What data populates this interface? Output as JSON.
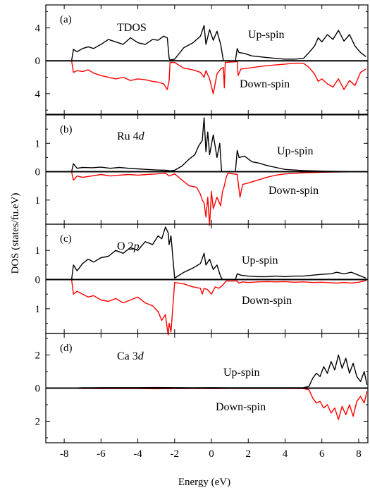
{
  "chart_data": {
    "type": "line",
    "ylabel": "DOS (states/fu.eV)",
    "xlabel": "Energy (eV)",
    "xlim": [
      -9,
      8.5
    ],
    "x_ticks": [
      -8,
      -6,
      -4,
      -2,
      0,
      2,
      4,
      6,
      8
    ],
    "x_tick_labels": [
      "-8",
      "-6",
      "-4",
      "-2",
      "0",
      "2",
      "4",
      "6",
      "8"
    ],
    "colors": {
      "up": "#000000",
      "down": "#ff0000"
    },
    "panels": [
      {
        "letter": "(a)",
        "title_main": "TDOS",
        "title_italic": "",
        "ylim": [
          -6.5,
          6.8
        ],
        "y_ticks": [
          4,
          0,
          -4
        ],
        "y_tick_labels": [
          "4",
          "0",
          "4"
        ],
        "up_label": "Up-spin",
        "down_label": "Down-spin",
        "series": [
          {
            "name": "Up-spin",
            "x": [
              -7.6,
              -7.5,
              -7.3,
              -7.0,
              -6.7,
              -6.4,
              -6.0,
              -5.6,
              -5.2,
              -4.8,
              -4.4,
              -4.0,
              -3.6,
              -3.2,
              -2.9,
              -2.6,
              -2.4,
              -2.3,
              -2.25,
              -2.0,
              -1.5,
              -1.0,
              -0.6,
              -0.4,
              -0.3,
              -0.1,
              0.1,
              0.3,
              0.5,
              0.65,
              1.3,
              1.4,
              1.5,
              1.8,
              2.2,
              2.6,
              3.0,
              3.5,
              4.0,
              4.5,
              5.0,
              5.3,
              5.6,
              5.8,
              6.0,
              6.3,
              6.6,
              6.9,
              7.2,
              7.5,
              7.8,
              8.1,
              8.4
            ],
            "values": [
              0.0,
              1.4,
              1.1,
              1.5,
              1.7,
              1.5,
              2.0,
              2.6,
              2.3,
              2.0,
              2.8,
              2.2,
              2.0,
              2.6,
              2.5,
              3.0,
              2.8,
              0.3,
              0.1,
              0.2,
              1.6,
              2.2,
              3.0,
              4.3,
              2.0,
              3.8,
              2.5,
              3.6,
              2.0,
              0.0,
              0.0,
              1.5,
              1.0,
              0.9,
              0.6,
              0.5,
              0.4,
              0.3,
              0.2,
              0.2,
              0.3,
              1.0,
              1.8,
              2.8,
              2.3,
              3.2,
              2.6,
              3.7,
              2.4,
              3.2,
              1.8,
              1.0,
              0.5
            ]
          },
          {
            "name": "Down-spin",
            "x": [
              -7.6,
              -7.5,
              -7.3,
              -7.0,
              -6.7,
              -6.4,
              -6.0,
              -5.6,
              -5.2,
              -4.8,
              -4.4,
              -4.0,
              -3.6,
              -3.2,
              -2.9,
              -2.6,
              -2.4,
              -2.3,
              -2.25,
              -2.0,
              -1.5,
              -1.0,
              -0.6,
              -0.4,
              -0.3,
              -0.1,
              0.1,
              0.3,
              0.5,
              0.65,
              0.7,
              0.75,
              1.4,
              1.45,
              1.6,
              2.0,
              2.6,
              3.0,
              3.5,
              4.0,
              4.5,
              5.0,
              5.3,
              5.6,
              5.8,
              6.0,
              6.3,
              6.6,
              6.9,
              7.2,
              7.5,
              7.8,
              8.1,
              8.4
            ],
            "values": [
              0.0,
              -1.4,
              -1.2,
              -1.3,
              -1.1,
              -1.5,
              -1.8,
              -2.0,
              -2.2,
              -2.0,
              -2.4,
              -2.2,
              -2.3,
              -2.5,
              -2.6,
              -2.8,
              -3.5,
              -2.4,
              -0.2,
              -0.2,
              -0.9,
              -1.1,
              -1.4,
              -2.0,
              -1.2,
              -2.2,
              -4.0,
              -1.6,
              -1.0,
              -0.8,
              -3.3,
              -0.2,
              -0.1,
              -1.8,
              -1.0,
              -0.9,
              -0.7,
              -0.6,
              -0.5,
              -0.4,
              -0.3,
              -0.3,
              -0.8,
              -1.6,
              -2.5,
              -2.2,
              -2.8,
              -3.2,
              -2.2,
              -3.5,
              -2.4,
              -3.0,
              -1.4,
              -1.0
            ]
          }
        ]
      },
      {
        "letter": "(b)",
        "title_main": "Ru 4",
        "title_italic": "d",
        "ylim": [
          -1.85,
          2.0
        ],
        "y_ticks": [
          1,
          0,
          -1
        ],
        "y_tick_labels": [
          "1",
          "0",
          "1"
        ],
        "up_label": "Up-spin",
        "down_label": "Down-spin",
        "series": [
          {
            "name": "Up-spin",
            "x": [
              -7.6,
              -7.5,
              -7.3,
              -7.0,
              -6.5,
              -6.0,
              -5.5,
              -5.0,
              -4.5,
              -4.0,
              -3.5,
              -3.0,
              -2.5,
              -2.2,
              -2.0,
              -1.6,
              -1.2,
              -0.9,
              -0.7,
              -0.5,
              -0.4,
              -0.3,
              -0.2,
              -0.1,
              0.1,
              0.3,
              0.45,
              0.55,
              1.3,
              1.4,
              1.5,
              1.8,
              2.2,
              2.6,
              3.0,
              3.5,
              4.0,
              5.0,
              6.0,
              7.0,
              8.4
            ],
            "values": [
              0.0,
              0.28,
              0.12,
              0.15,
              0.14,
              0.16,
              0.12,
              0.15,
              0.12,
              0.1,
              0.08,
              0.06,
              0.05,
              0.03,
              0.05,
              0.2,
              0.45,
              0.6,
              0.9,
              1.1,
              1.9,
              0.7,
              1.4,
              0.6,
              1.3,
              0.5,
              1.0,
              0.0,
              0.0,
              0.75,
              0.5,
              0.55,
              0.35,
              0.3,
              0.22,
              0.15,
              0.08,
              0.04,
              0.02,
              0.01,
              0.0
            ]
          },
          {
            "name": "Down-spin",
            "x": [
              -7.6,
              -7.5,
              -7.3,
              -7.0,
              -6.5,
              -6.0,
              -5.5,
              -5.0,
              -4.5,
              -4.0,
              -3.5,
              -3.0,
              -2.5,
              -2.3,
              -2.0,
              -1.5,
              -1.2,
              -0.8,
              -0.6,
              -0.5,
              -0.4,
              -0.3,
              -0.2,
              -0.1,
              0.0,
              0.1,
              0.3,
              0.5,
              0.6,
              0.7,
              0.8,
              0.9,
              1.4,
              1.55,
              1.7,
              2.0,
              2.5,
              3.0,
              3.5,
              4.0,
              5.0,
              6.0,
              7.0,
              8.4
            ],
            "values": [
              0.0,
              -0.3,
              -0.15,
              -0.2,
              -0.15,
              -0.1,
              -0.15,
              -0.12,
              -0.1,
              -0.12,
              -0.1,
              -0.08,
              -0.05,
              -0.15,
              -0.08,
              -0.35,
              -0.5,
              -0.55,
              -0.8,
              -1.0,
              -1.1,
              -1.6,
              -0.9,
              -1.9,
              -0.7,
              -1.3,
              -0.9,
              -1.2,
              -0.7,
              -0.5,
              -0.2,
              -0.05,
              -0.1,
              -0.9,
              -0.45,
              -0.4,
              -0.3,
              -0.2,
              -0.12,
              -0.08,
              -0.04,
              -0.02,
              -0.01,
              0.0
            ]
          }
        ]
      },
      {
        "letter": "(c)",
        "title_main": "O 2",
        "title_italic": "p",
        "ylim": [
          -1.85,
          1.9
        ],
        "y_ticks": [
          1,
          0,
          -1
        ],
        "y_tick_labels": [
          "1",
          "0",
          "1"
        ],
        "up_label": "Up-spin",
        "down_label": "Down-spin",
        "series": [
          {
            "name": "Up-spin",
            "x": [
              -7.6,
              -7.5,
              -7.3,
              -7.0,
              -6.7,
              -6.4,
              -6.0,
              -5.6,
              -5.2,
              -4.8,
              -4.4,
              -4.0,
              -3.6,
              -3.2,
              -2.9,
              -2.7,
              -2.5,
              -2.35,
              -2.3,
              -2.2,
              -2.0,
              -1.5,
              -1.0,
              -0.6,
              -0.4,
              -0.3,
              -0.1,
              0.1,
              0.3,
              0.5,
              0.6,
              1.3,
              1.4,
              1.6,
              2.0,
              2.5,
              3.0,
              3.5,
              4.0,
              4.5,
              5.0,
              5.5,
              6.0,
              6.5,
              6.8,
              7.2,
              7.6,
              8.0,
              8.4
            ],
            "values": [
              0.0,
              0.5,
              0.3,
              0.55,
              0.7,
              0.6,
              0.75,
              0.8,
              1.0,
              0.9,
              1.1,
              1.0,
              1.3,
              1.2,
              1.5,
              1.4,
              1.8,
              1.6,
              1.2,
              1.5,
              0.05,
              0.25,
              0.4,
              0.55,
              0.9,
              0.5,
              0.7,
              0.35,
              0.5,
              0.1,
              0.0,
              0.0,
              0.2,
              0.15,
              0.12,
              0.1,
              0.1,
              0.12,
              0.1,
              0.12,
              0.12,
              0.15,
              0.18,
              0.2,
              0.25,
              0.2,
              0.25,
              0.15,
              0.05
            ]
          },
          {
            "name": "Down-spin",
            "x": [
              -7.6,
              -7.5,
              -7.3,
              -7.0,
              -6.7,
              -6.4,
              -6.0,
              -5.6,
              -5.2,
              -4.8,
              -4.4,
              -4.0,
              -3.6,
              -3.2,
              -2.9,
              -2.7,
              -2.5,
              -2.4,
              -2.35,
              -2.3,
              -2.2,
              -2.0,
              -1.5,
              -1.0,
              -0.6,
              -0.5,
              -0.4,
              -0.2,
              0.0,
              0.2,
              0.4,
              0.6,
              0.8,
              1.4,
              1.5,
              1.7,
              2.0,
              2.5,
              3.0,
              3.5,
              4.0,
              4.5,
              5.0,
              5.5,
              6.0,
              6.5,
              6.8,
              7.2,
              7.6,
              8.0,
              8.4
            ],
            "values": [
              0.0,
              -0.5,
              -0.4,
              -0.5,
              -0.6,
              -0.55,
              -0.7,
              -0.75,
              -0.65,
              -0.8,
              -0.7,
              -0.6,
              -0.8,
              -0.9,
              -1.1,
              -1.4,
              -1.2,
              -1.7,
              -1.9,
              -1.5,
              -1.8,
              -0.1,
              -0.15,
              -0.25,
              -0.3,
              -0.5,
              -0.3,
              -0.35,
              -0.5,
              -0.25,
              -0.3,
              -0.2,
              -0.05,
              -0.05,
              -0.12,
              -0.08,
              -0.1,
              -0.08,
              -0.07,
              -0.08,
              -0.07,
              -0.09,
              -0.08,
              -0.1,
              -0.09,
              -0.11,
              -0.12,
              -0.1,
              -0.12,
              -0.09,
              -0.03
            ]
          }
        ]
      },
      {
        "letter": "(d)",
        "title_main": "Ca 3",
        "title_italic": "d",
        "ylim": [
          -3.3,
          3.3
        ],
        "y_ticks": [
          2,
          0,
          -2
        ],
        "y_tick_labels": [
          "2",
          "0",
          "2"
        ],
        "up_label": "Up-spin",
        "down_label": "Down-spin",
        "series": [
          {
            "name": "Up-spin",
            "x": [
              -7.6,
              -7.0,
              -6.0,
              -5.0,
              -4.0,
              -3.0,
              -2.0,
              -1.0,
              0.0,
              1.0,
              2.0,
              3.0,
              4.0,
              5.0,
              5.3,
              5.5,
              5.7,
              5.9,
              6.1,
              6.3,
              6.5,
              6.7,
              6.9,
              7.1,
              7.3,
              7.5,
              7.7,
              7.9,
              8.1,
              8.3,
              8.45
            ],
            "values": [
              0.0,
              0.02,
              0.03,
              0.03,
              0.03,
              0.04,
              0.03,
              0.02,
              0.03,
              0.02,
              0.02,
              0.02,
              0.02,
              0.03,
              0.1,
              0.6,
              0.9,
              0.7,
              1.3,
              0.9,
              1.6,
              1.1,
              2.0,
              1.2,
              1.8,
              0.9,
              1.5,
              0.7,
              0.4,
              1.0,
              0.2
            ]
          },
          {
            "name": "Down-spin",
            "x": [
              -7.6,
              -7.0,
              -6.0,
              -5.0,
              -4.0,
              -3.0,
              -2.0,
              -1.0,
              0.0,
              1.0,
              2.0,
              3.0,
              4.0,
              5.0,
              5.3,
              5.5,
              5.7,
              5.9,
              6.1,
              6.3,
              6.5,
              6.7,
              6.9,
              7.1,
              7.3,
              7.5,
              7.7,
              7.9,
              8.1,
              8.3,
              8.45
            ],
            "values": [
              0.0,
              -0.02,
              -0.03,
              -0.03,
              -0.03,
              -0.04,
              -0.03,
              -0.02,
              -0.03,
              -0.02,
              -0.02,
              -0.02,
              -0.02,
              -0.03,
              -0.1,
              -0.6,
              -0.9,
              -0.8,
              -1.2,
              -1.0,
              -1.5,
              -1.2,
              -1.9,
              -1.1,
              -1.6,
              -1.0,
              -1.7,
              -0.8,
              -0.5,
              -0.9,
              -0.2
            ]
          }
        ]
      }
    ]
  }
}
